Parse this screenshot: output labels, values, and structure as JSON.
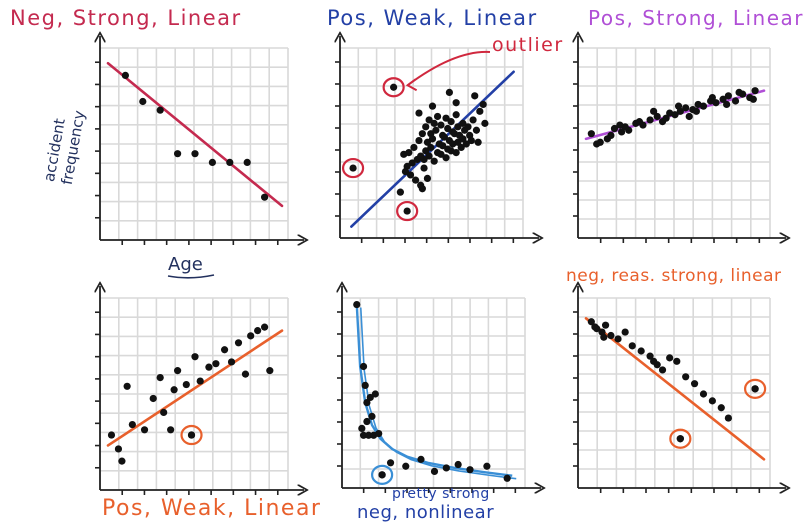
{
  "chart_data": [
    {
      "type": "scatter",
      "title": "Neg, Strong, Linear",
      "title_color": "#c42a4f",
      "xlabel": "Age",
      "ylabel": "accident frequency",
      "label_color": "#23315e",
      "trend": {
        "color": "#c42a4f",
        "x": [
          0,
          10
        ],
        "y": [
          9.7,
          1.5
        ]
      },
      "x": [
        1,
        2,
        3,
        4,
        5,
        6,
        7,
        8,
        9
      ],
      "y": [
        9,
        7.5,
        7,
        4.5,
        4.5,
        4,
        4,
        4,
        2
      ]
    },
    {
      "type": "scatter",
      "title": "Pos, Weak, Linear",
      "title_color": "#2340a6",
      "annotation": "outlier",
      "annotation_color": "#d0283e",
      "trend": {
        "color": "#2340a6",
        "x": [
          0.2,
          9.8
        ],
        "y": [
          0.2,
          9.2
        ]
      },
      "x": [
        4.8,
        5.1,
        5.3,
        5.5,
        5.8,
        6.1,
        6.4,
        4.9,
        5.2,
        5.6,
        5.9,
        6.2,
        6.5,
        6.8,
        4.7,
        5.0,
        5.4,
        5.7,
        6.0,
        6.3,
        6.6,
        6.9,
        7.1,
        4.6,
        4.9,
        5.3,
        5.6,
        5.9,
        6.2,
        6.5,
        6.8,
        7.2,
        4.5,
        4.8,
        5.1,
        5.5,
        5.8,
        6.1,
        6.4,
        6.7,
        7.0,
        7.3,
        3.6,
        3.9,
        4.2,
        4.4,
        4.6,
        3.5,
        3.8,
        4.1,
        4.3,
        4.5,
        7.4,
        7.6,
        7.8,
        8.0,
        7.5,
        7.7,
        3.4,
        3.7,
        4.0,
        4.3,
        6.0,
        6.4,
        5.0,
        4.2,
        8.1,
        3.3,
        4.4,
        4.7,
        3.1
      ],
      "y": [
        6.4,
        6.2,
        6.6,
        6.1,
        6.5,
        6.3,
        6.7,
        5.6,
        5.8,
        5.5,
        5.9,
        5.7,
        6.0,
        6.2,
        5.1,
        5.3,
        5.0,
        5.4,
        5.2,
        5.6,
        5.5,
        5.8,
        6.0,
        4.6,
        4.8,
        4.5,
        4.9,
        4.7,
        5.0,
        5.1,
        5.3,
        5.5,
        4.1,
        4.3,
        4.0,
        4.4,
        4.2,
        4.6,
        4.5,
        4.8,
        5.0,
        5.2,
        4.5,
        4.8,
        5.2,
        5.6,
        6.0,
        3.7,
        3.9,
        4.1,
        4.3,
        3.6,
        6.4,
        5.8,
        6.9,
        7.3,
        7.8,
        5.1,
        3.4,
        3.2,
        2.9,
        2.6,
        8.0,
        7.4,
        7.2,
        6.8,
        6.2,
        4.4,
        2.4,
        3.0,
        2.2
      ],
      "outliers": {
        "x": [
          2.7,
          0.3,
          3.5
        ],
        "y": [
          8.3,
          3.6,
          1.1
        ]
      }
    },
    {
      "type": "scatter",
      "title": "Pos, Strong, Linear",
      "title_color": "#b04fd6",
      "trend": {
        "color": "#b04fd6",
        "x": [
          0,
          10
        ],
        "y": [
          5.3,
          8.1
        ]
      },
      "x": [
        0.3,
        0.8,
        1.2,
        1.6,
        2.0,
        2.4,
        2.8,
        3.2,
        3.6,
        4.0,
        4.3,
        4.7,
        5.0,
        5.3,
        5.6,
        6.0,
        6.3,
        6.6,
        7.0,
        7.3,
        7.7,
        8.0,
        8.4,
        8.8,
        9.2,
        9.5,
        0.6,
        1.4,
        2.2,
        3.0,
        3.8,
        4.5,
        5.2,
        6.2,
        7.1,
        7.9,
        8.6,
        9.4,
        1.9,
        5.8
      ],
      "y": [
        5.6,
        5.1,
        5.3,
        5.9,
        5.7,
        5.8,
        6.2,
        6.1,
        6.4,
        6.6,
        6.3,
        6.8,
        6.7,
        6.9,
        7.1,
        7.0,
        7.3,
        7.2,
        7.5,
        7.4,
        7.6,
        7.8,
        7.5,
        7.9,
        7.7,
        8.1,
        5.0,
        5.5,
        6.0,
        6.3,
        6.9,
        6.5,
        7.2,
        6.9,
        7.7,
        7.3,
        8.0,
        7.6,
        6.1,
        6.6
      ]
    },
    {
      "type": "scatter",
      "title": "Pos, Weak, Linear",
      "title_color": "#e8602c",
      "trend": {
        "color": "#e8602c",
        "x": [
          0,
          10
        ],
        "y": [
          2.1,
          8.7
        ]
      },
      "x": [
        0.2,
        0.8,
        1.1,
        1.4,
        2.1,
        2.6,
        3.0,
        3.2,
        3.6,
        4.0,
        4.5,
        5.0,
        5.3,
        5.8,
        6.2,
        6.7,
        7.1,
        7.5,
        7.9,
        8.2,
        8.6,
        9.0,
        9.3,
        0.6,
        3.8,
        4.8
      ],
      "y": [
        2.7,
        1.2,
        5.5,
        3.3,
        3.0,
        4.8,
        6.0,
        4.0,
        3.0,
        6.4,
        5.6,
        7.2,
        5.8,
        6.6,
        6.8,
        7.6,
        6.9,
        8.0,
        6.2,
        8.4,
        8.7,
        8.9,
        6.4,
        1.9,
        5.3,
        2.7
      ],
      "outliers": {
        "x": [
          4.8
        ],
        "y": [
          2.7
        ]
      }
    },
    {
      "type": "scatter",
      "title": "Pos, Weak, Linear",
      "title_color": "#e8602c",
      "extra_label": "pretty strong",
      "subtitle": "neg, nonlinear",
      "label_color": "#2340a6",
      "curve_color": "#3a8fd6",
      "curve": {
        "x": [
          0.4,
          0.6,
          0.9,
          1.3,
          1.8,
          2.5,
          3.4,
          4.6,
          6.2,
          8.0,
          9.6
        ],
        "y": [
          10.2,
          6.6,
          4.5,
          3.2,
          2.4,
          1.8,
          1.35,
          1.0,
          0.7,
          0.45,
          0.25
        ]
      },
      "x": [
        0.4,
        0.8,
        1.0,
        0.9,
        1.2,
        1.5,
        0.8,
        1.1,
        1.4,
        1.7,
        1.0,
        1.3,
        2.4,
        3.3,
        4.2,
        5.0,
        5.7,
        6.4,
        7.1,
        8.1,
        9.3,
        1.9,
        0.7
      ],
      "y": [
        10.2,
        6.6,
        4.5,
        5.5,
        4.8,
        5.0,
        2.6,
        2.6,
        2.6,
        2.7,
        3.4,
        3.7,
        1.0,
        0.8,
        1.2,
        0.5,
        0.7,
        0.9,
        0.6,
        0.8,
        0.1,
        0.3,
        3.0
      ],
      "outliers": {
        "x": [
          1.9
        ],
        "y": [
          0.3
        ]
      }
    },
    {
      "type": "scatter",
      "title": "neg, reas. strong, linear",
      "title_color": "#e8602c",
      "trend": {
        "color": "#e8602c",
        "x": [
          0,
          10
        ],
        "y": [
          9.4,
          1.2
        ]
      },
      "x": [
        0.3,
        0.6,
        0.9,
        1.1,
        1.4,
        1.8,
        2.2,
        2.6,
        3.1,
        3.6,
        4.0,
        4.3,
        4.7,
        5.1,
        5.6,
        6.1,
        6.6,
        7.1,
        7.6,
        8.0,
        0.5,
        1.0,
        3.8,
        9.5,
        5.3
      ],
      "y": [
        9.2,
        8.8,
        8.6,
        9.0,
        8.4,
        8.2,
        8.6,
        7.8,
        7.5,
        7.2,
        6.7,
        6.4,
        7.1,
        6.9,
        6.0,
        5.6,
        5.0,
        4.6,
        4.2,
        3.6,
        8.9,
        8.3,
        6.9,
        5.3,
        2.4
      ],
      "outliers": {
        "x": [
          9.5,
          5.3
        ],
        "y": [
          5.3,
          2.4
        ]
      }
    }
  ]
}
